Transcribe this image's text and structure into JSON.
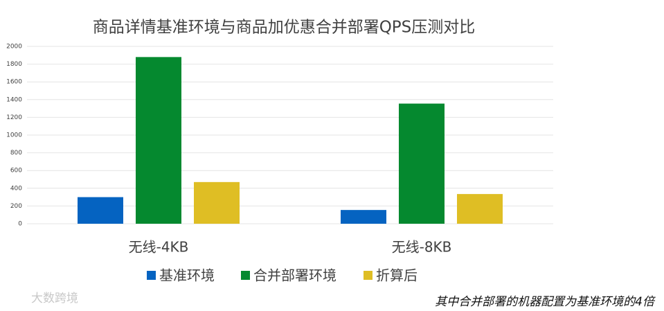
{
  "chart_data": {
    "type": "bar",
    "title": "商品详情基准环境与商品加优惠合并部署QPS压测对比",
    "categories": [
      "无线-4KB",
      "无线-8KB"
    ],
    "series": [
      {
        "name": "基准环境",
        "color": "#0563c1",
        "values": [
          300,
          155
        ]
      },
      {
        "name": "合并部署环境",
        "color": "#05892f",
        "values": [
          1880,
          1355
        ]
      },
      {
        "name": "折算后",
        "color": "#dfbe24",
        "values": [
          470,
          335
        ]
      }
    ],
    "ylim": [
      0,
      2000
    ],
    "yticks": [
      0,
      200,
      400,
      600,
      800,
      1000,
      1200,
      1400,
      1600,
      1800,
      2000
    ],
    "grid": true,
    "legend": "bottom",
    "annotation": "其中合并部署的机器配置为基准环境的4倍",
    "watermark": "大数跨境"
  }
}
